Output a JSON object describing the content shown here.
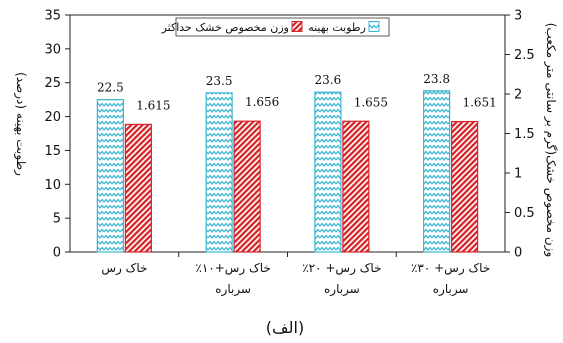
{
  "chart_data": {
    "type": "bar",
    "categories": [
      "خاک رس",
      "خاک رس+۱۰٪\nسرباره",
      "خاک رس+ ۲۰٪\nسرباره",
      "خاک رس+ ۳۰٪\nسرباره"
    ],
    "series": [
      {
        "name": "رطوبت بهینه",
        "axis": "left",
        "values": [
          22.5,
          23.5,
          23.6,
          23.8
        ],
        "labels": [
          "22.5",
          "23.5",
          "23.6",
          "23.8"
        ],
        "color": "#3bb6d0",
        "pattern": "zigzag"
      },
      {
        "name": "وزن مخصوص خشک حداکثر",
        "axis": "right",
        "values": [
          1.615,
          1.656,
          1.655,
          1.651
        ],
        "labels": [
          "1.615",
          "1.656",
          "1.655",
          "1.651"
        ],
        "color": "#d6252a",
        "pattern": "diagonal"
      }
    ],
    "ylabel": "رطوبت بهینه (درصد)",
    "y2label": "وزن مخصوص خشک(گرم بر سانتی متر مکعب)",
    "ylim": [
      0,
      35
    ],
    "y2lim": [
      0,
      3
    ],
    "yticks": [
      "0",
      "5",
      "10",
      "15",
      "20",
      "25",
      "30",
      "35"
    ],
    "y2ticks": [
      "0",
      "0.5",
      "1",
      "1.5",
      "2",
      "2.5",
      "3"
    ],
    "legend_position": "top",
    "grid": false
  },
  "caption": "(الف)"
}
